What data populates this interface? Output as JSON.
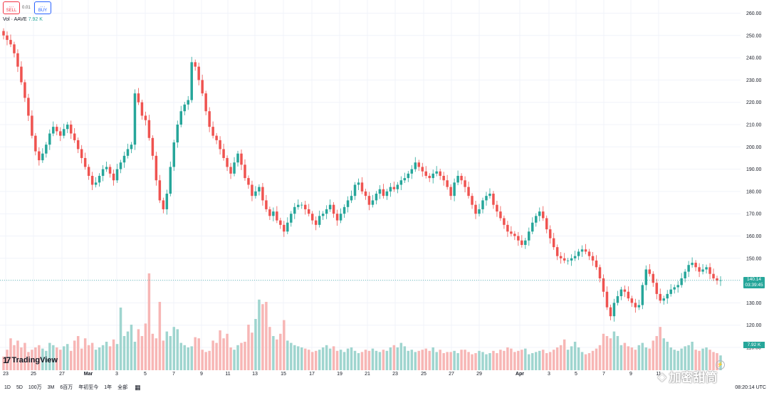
{
  "trade": {
    "sell_dots": "...",
    "sell_label": "SELL",
    "spread": "0.01",
    "buy_dots": "...",
    "buy_label": "BUY"
  },
  "volume_legend": {
    "label": "Vol · AAVE",
    "value": "7.92 K"
  },
  "price_axis": {
    "labels": [
      "260.00",
      "250.00",
      "240.00",
      "230.00",
      "220.00",
      "210.00",
      "200.00",
      "190.00",
      "180.00",
      "170.00",
      "160.00",
      "150.00",
      "140.00",
      "130.00",
      "120.00",
      "110.00"
    ]
  },
  "time_axis": {
    "labels": [
      "23",
      "25",
      "27",
      "Mar",
      "3",
      "5",
      "7",
      "9",
      "11",
      "13",
      "15",
      "17",
      "19",
      "21",
      "23",
      "25",
      "27",
      "29",
      "Apr",
      "3",
      "5",
      "7",
      "9",
      "11"
    ]
  },
  "last_price": {
    "price": "140.14",
    "countdown": "03:39:45"
  },
  "volume_tag": "7.92 K",
  "logo": {
    "mark": "17",
    "text": "TradingView"
  },
  "toolbar": {
    "timeframes": [
      "1D",
      "5D",
      "100万",
      "3M",
      "6百万",
      "年初至今",
      "1年",
      "全部"
    ],
    "clock": "08:20:14 UTC"
  },
  "watermark": "加密甜筒",
  "colors": {
    "up": "#26a69a",
    "down": "#ef5350",
    "volume_up": "#9fd5cf",
    "volume_down": "#f7b6b5"
  },
  "chart_data": {
    "type": "candlestick",
    "symbol": "AAVE",
    "x_range": [
      "Feb 23",
      "Apr 13"
    ],
    "ylim": [
      105,
      265
    ],
    "last_price": 140.14,
    "grid": true,
    "close": [
      250,
      248,
      246,
      242,
      236,
      229,
      222,
      214,
      205,
      198,
      194,
      197,
      201,
      206,
      209,
      207,
      205,
      208,
      210,
      206,
      203,
      199,
      195,
      191,
      187,
      183,
      184,
      187,
      190,
      191,
      188,
      185,
      190,
      193,
      196,
      199,
      201,
      224,
      220,
      214,
      212,
      204,
      196,
      185,
      176,
      172,
      179,
      191,
      202,
      210,
      216,
      219,
      221,
      238,
      236,
      230,
      224,
      216,
      209,
      205,
      203,
      199,
      195,
      191,
      188,
      193,
      197,
      192,
      186,
      183,
      178,
      180,
      182,
      176,
      172,
      169,
      171,
      167,
      165,
      162,
      166,
      170,
      173,
      174,
      174,
      172,
      170,
      167,
      165,
      169,
      170,
      172,
      174,
      170,
      167,
      170,
      173,
      176,
      178,
      183,
      184,
      180,
      178,
      174,
      176,
      179,
      181,
      178,
      180,
      182,
      181,
      183,
      185,
      186,
      188,
      190,
      193,
      191,
      189,
      187,
      186,
      188,
      189,
      187,
      185,
      182,
      178,
      184,
      187,
      185,
      182,
      178,
      174,
      170,
      172,
      176,
      178,
      179,
      174,
      171,
      168,
      165,
      162,
      161,
      160,
      158,
      156,
      158,
      162,
      166,
      169,
      171,
      168,
      163,
      159,
      155,
      151,
      150,
      149,
      149,
      150,
      151,
      153,
      154,
      153,
      151,
      149,
      146,
      141,
      135,
      128,
      124,
      130,
      133,
      136,
      135,
      132,
      130,
      128,
      129,
      138,
      145,
      143,
      139,
      134,
      131,
      132,
      134,
      136,
      137,
      138,
      141,
      144,
      147,
      148,
      146,
      144,
      145,
      146,
      143,
      141,
      140,
      140.14
    ],
    "volume": [
      12,
      18,
      28,
      22,
      26,
      20,
      24,
      16,
      18,
      20,
      22,
      19,
      17,
      24,
      22,
      20,
      18,
      21,
      23,
      17,
      26,
      30,
      19,
      28,
      22,
      24,
      18,
      20,
      22,
      25,
      21,
      27,
      23,
      55,
      30,
      34,
      40,
      25,
      36,
      30,
      41,
      85,
      32,
      28,
      60,
      26,
      34,
      30,
      38,
      36,
      24,
      22,
      20,
      21,
      29,
      28,
      18,
      16,
      17,
      26,
      24,
      35,
      28,
      32,
      20,
      18,
      22,
      24,
      25,
      40,
      33,
      45,
      62,
      58,
      60,
      38,
      30,
      27,
      32,
      44,
      26,
      24,
      22,
      21,
      20,
      19,
      18,
      16,
      17,
      18,
      20,
      22,
      19,
      21,
      17,
      18,
      16,
      19,
      20,
      17,
      15,
      16,
      18,
      17,
      19,
      17,
      16,
      18,
      17,
      20,
      22,
      20,
      24,
      21,
      17,
      18,
      16,
      17,
      18,
      19,
      17,
      20,
      16,
      18,
      15,
      16,
      16,
      17,
      15,
      18,
      18,
      16,
      14,
      15,
      17,
      16,
      14,
      15,
      17,
      15,
      18,
      17,
      20,
      19,
      16,
      17,
      18,
      19,
      14,
      15,
      16,
      17,
      18,
      15,
      16,
      18,
      20,
      22,
      27,
      18,
      21,
      25,
      20,
      16,
      14,
      15,
      17,
      19,
      22,
      32,
      30,
      28,
      34,
      30,
      22,
      24,
      21,
      20,
      18,
      22,
      24,
      20,
      19,
      26,
      30,
      38,
      28,
      25,
      20,
      18,
      17,
      19,
      21,
      22,
      25,
      18,
      17,
      19,
      20,
      18,
      16,
      15,
      13
    ]
  }
}
